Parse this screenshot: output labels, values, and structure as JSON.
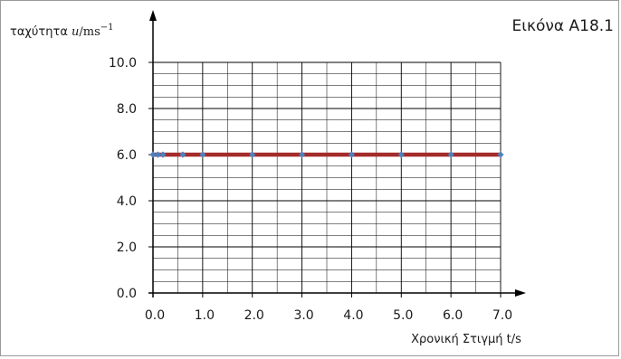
{
  "figure_label": "Εικόνα Α18.1",
  "chart_data": {
    "type": "line",
    "x": [
      0,
      0.1,
      0.2,
      0.6,
      1.0,
      2.0,
      3.0,
      4.0,
      5.0,
      6.0,
      7.0
    ],
    "series": [
      {
        "values": [
          6.0,
          6.0,
          6.0,
          6.0,
          6.0,
          6.0,
          6.0,
          6.0,
          6.0,
          6.0,
          6.0
        ],
        "line_color": "#a52a2a",
        "marker_color": "#4f81bd"
      }
    ],
    "xlabel": "Χρονική Στιγμή t/s",
    "ylabel_prefix": "ταχύτητα",
    "ylabel_symbol": "u",
    "ylabel_unit": "/ms",
    "ylabel_exponent": "−1",
    "xlim": [
      0,
      7.0
    ],
    "ylim": [
      0,
      10.0
    ],
    "x_ticks": [
      "0.0",
      "1.0",
      "2.0",
      "3.0",
      "4.0",
      "5.0",
      "6.0",
      "7.0"
    ],
    "y_ticks": [
      "0.0",
      "2.0",
      "4.0",
      "6.0",
      "8.0",
      "10.0"
    ],
    "grid": true,
    "axis_color": "#000000",
    "grid_color": "#000000"
  }
}
